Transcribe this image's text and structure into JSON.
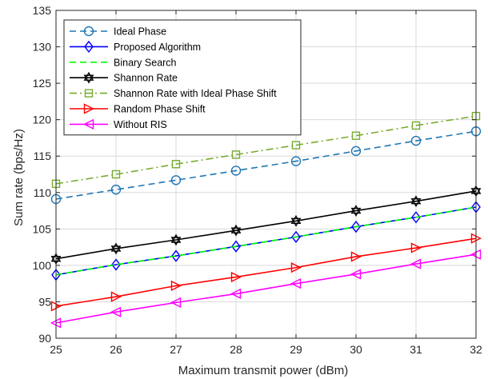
{
  "chart_data": {
    "type": "line",
    "xlabel": "Maximum transmit power (dBm)",
    "ylabel": "Sum rate (bps/Hz)",
    "xlim": [
      25,
      32
    ],
    "ylim": [
      90,
      135
    ],
    "x": [
      25,
      26,
      27,
      28,
      29,
      30,
      31,
      32
    ],
    "xticks": [
      "25",
      "26",
      "27",
      "28",
      "29",
      "30",
      "31",
      "32"
    ],
    "yticks": [
      "90",
      "95",
      "100",
      "105",
      "110",
      "115",
      "120",
      "125",
      "130",
      "135"
    ],
    "grid": true,
    "legend_position": "top-left",
    "series": [
      {
        "name": "Ideal Phase",
        "color": "#1f77b4",
        "dash": "dashed",
        "marker": "circle",
        "values": [
          109.1,
          110.4,
          111.7,
          113.0,
          114.3,
          115.7,
          117.1,
          118.4
        ]
      },
      {
        "name": "Proposed Algorithm",
        "color": "#0000ff",
        "dash": "solid",
        "marker": "diamond",
        "values": [
          98.7,
          100.1,
          101.3,
          102.6,
          103.9,
          105.3,
          106.6,
          108.0
        ]
      },
      {
        "name": "Binary Search",
        "color": "#00ff00",
        "dash": "dashed",
        "marker": "none",
        "values": [
          98.7,
          100.1,
          101.3,
          102.6,
          103.9,
          105.3,
          106.6,
          108.0
        ]
      },
      {
        "name": "Shannon Rate",
        "color": "#000000",
        "dash": "solid",
        "marker": "hexagram",
        "values": [
          100.9,
          102.3,
          103.5,
          104.8,
          106.1,
          107.5,
          108.8,
          110.2
        ]
      },
      {
        "name": "Shannon Rate with Ideal Phase Shift",
        "color": "#77ac30",
        "dash": "dashdot",
        "marker": "square",
        "values": [
          111.2,
          112.5,
          113.9,
          115.2,
          116.5,
          117.8,
          119.2,
          120.5
        ]
      },
      {
        "name": "Random Phase Shift",
        "color": "#ff0000",
        "dash": "solid",
        "marker": "triangle-right",
        "values": [
          94.4,
          95.7,
          97.2,
          98.4,
          99.7,
          101.2,
          102.4,
          103.7
        ]
      },
      {
        "name": "Without RIS",
        "color": "#ff00ff",
        "dash": "solid",
        "marker": "triangle-left",
        "values": [
          92.1,
          93.6,
          94.9,
          96.1,
          97.5,
          98.8,
          100.2,
          101.5
        ]
      }
    ]
  }
}
